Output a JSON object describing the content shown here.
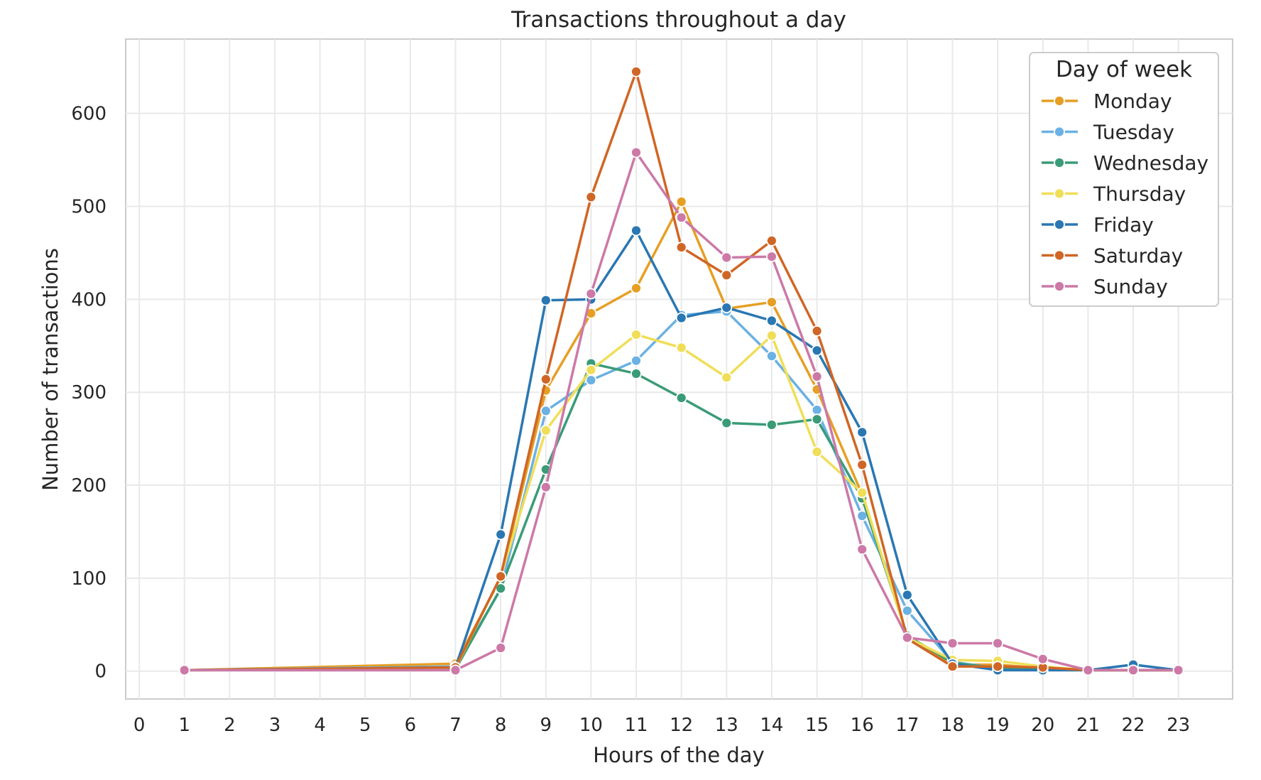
{
  "chart_data": {
    "type": "line",
    "title": "Transactions throughout a day",
    "xlabel": "Hours of the day",
    "ylabel": "Number of transactions",
    "xlim": [
      -0.3,
      24.2
    ],
    "ylim": [
      -30,
      680
    ],
    "xticks": [
      0,
      1,
      2,
      3,
      4,
      5,
      6,
      7,
      8,
      9,
      10,
      11,
      12,
      13,
      14,
      15,
      16,
      17,
      18,
      19,
      20,
      21,
      22,
      23
    ],
    "yticks": [
      0,
      100,
      200,
      300,
      400,
      500,
      600
    ],
    "grid": true,
    "legend": {
      "title": "Day of week",
      "placement": "top-right"
    },
    "x": [
      1,
      7,
      8,
      9,
      10,
      11,
      12,
      13,
      14,
      15,
      16,
      17,
      18,
      19,
      20,
      21,
      22,
      23
    ],
    "series": [
      {
        "name": "Monday",
        "color": "#E69F24",
        "values": [
          1,
          8,
          100,
          302,
          385,
          412,
          505,
          390,
          397,
          303,
          190,
          37,
          7,
          7,
          3,
          1,
          1,
          1
        ]
      },
      {
        "name": "Tuesday",
        "color": "#6BB1E3",
        "values": [
          1,
          5,
          88,
          280,
          313,
          334,
          383,
          387,
          339,
          281,
          167,
          65,
          10,
          3,
          2,
          1,
          1,
          1
        ]
      },
      {
        "name": "Wednesday",
        "color": "#3A9B77",
        "values": [
          1,
          2,
          89,
          217,
          331,
          320,
          294,
          267,
          265,
          271,
          186,
          38,
          9,
          3,
          3,
          1,
          1,
          1
        ]
      },
      {
        "name": "Thursday",
        "color": "#F0DE58",
        "values": [
          1,
          3,
          102,
          259,
          324,
          362,
          348,
          316,
          361,
          236,
          192,
          36,
          12,
          11,
          5,
          1,
          1,
          1
        ]
      },
      {
        "name": "Friday",
        "color": "#2A77B2",
        "values": [
          1,
          4,
          147,
          399,
          400,
          474,
          380,
          391,
          377,
          345,
          257,
          82,
          8,
          1,
          1,
          1,
          7,
          1
        ]
      },
      {
        "name": "Saturday",
        "color": "#D06625",
        "values": [
          1,
          4,
          102,
          314,
          510,
          645,
          456,
          426,
          463,
          366,
          222,
          35,
          5,
          5,
          4,
          1,
          1,
          1
        ]
      },
      {
        "name": "Sunday",
        "color": "#CC79A7",
        "values": [
          1,
          1,
          25,
          198,
          406,
          558,
          488,
          445,
          446,
          317,
          131,
          36,
          30,
          30,
          13,
          1,
          1,
          1
        ]
      }
    ]
  }
}
